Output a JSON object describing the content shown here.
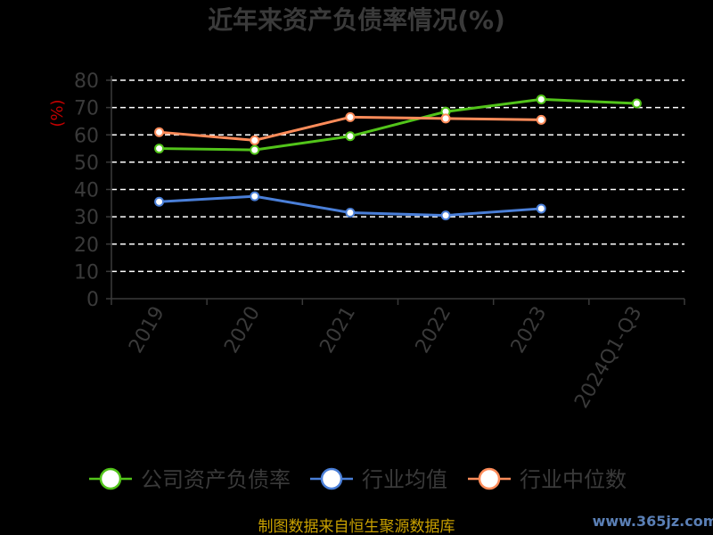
{
  "chart_data": {
    "type": "line",
    "title": "近年来资产负债率情况(%)",
    "ylabel": "(%)",
    "xlabel": "",
    "categories": [
      "2019",
      "2020",
      "2021",
      "2022",
      "2023",
      "2024Q1-Q3"
    ],
    "ylim": [
      0,
      80
    ],
    "yticks": [
      0,
      10,
      20,
      30,
      40,
      50,
      60,
      70,
      80
    ],
    "grid": true,
    "legend_position": "bottom",
    "series": [
      {
        "name": "公司资产负债率",
        "color": "#52c41a",
        "values": [
          55,
          54.5,
          59.5,
          68.5,
          73,
          71.5
        ]
      },
      {
        "name": "行业均值",
        "color": "#4a7fd8",
        "values": [
          35.5,
          37.5,
          31.5,
          30.5,
          33,
          null
        ]
      },
      {
        "name": "行业中位数",
        "color": "#ff8c5a",
        "values": [
          61,
          58,
          66.5,
          66,
          65.5,
          null
        ]
      }
    ]
  },
  "footer": "制图数据来自恒生聚源数据库",
  "watermark": "www.365jz.com"
}
